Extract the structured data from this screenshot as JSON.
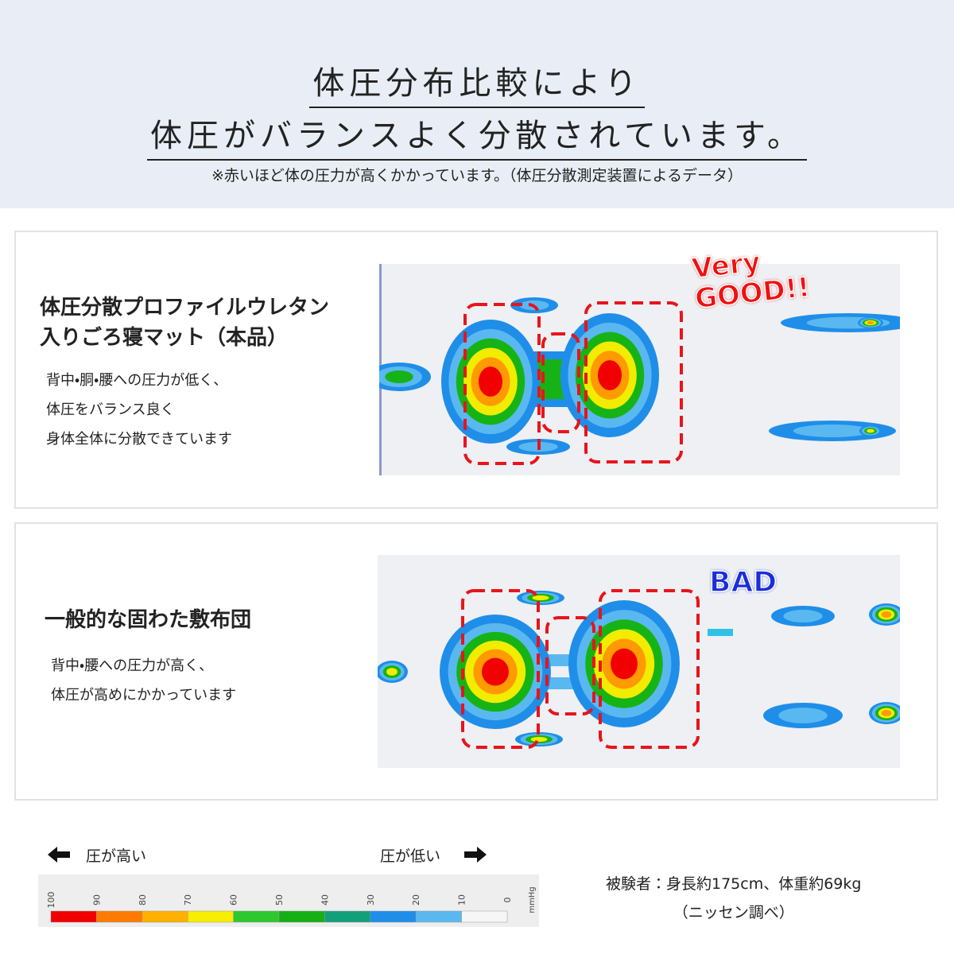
{
  "header": {
    "title_lines": [
      "体圧分布比較により",
      "体圧がバランスよく分散されています。"
    ],
    "note": "※赤いほど体の圧力が高くかかっています。（体圧分散測定装置によるデータ）"
  },
  "cards": [
    {
      "title_lines": [
        "体圧分散プロファイルウレタン",
        "入りごろ寝マット（本品）"
      ],
      "description_lines": [
        "背中・胴・腰への圧力が低く、",
        "体圧をバランス良く",
        "身体全体に分散できています"
      ],
      "badge_lines": [
        "Very",
        "GOOD!!"
      ]
    },
    {
      "title_lines": [
        "一般的な固わた敷布団"
      ],
      "description_lines": [
        "背中・腰への圧力が高く、",
        "体圧が高めにかかっています"
      ],
      "badge_lines": [
        "BAD"
      ]
    }
  ],
  "legend": {
    "high_label": "圧が高い",
    "low_label": "圧が低い",
    "scale_labels": [
      100,
      90,
      80,
      70,
      60,
      50,
      40,
      30,
      20,
      10,
      0
    ],
    "unit": "mmHg"
  },
  "subject": {
    "lines": [
      "被験者：身長約175cm、体重約69kg",
      "（ニッセン調べ）"
    ]
  }
}
